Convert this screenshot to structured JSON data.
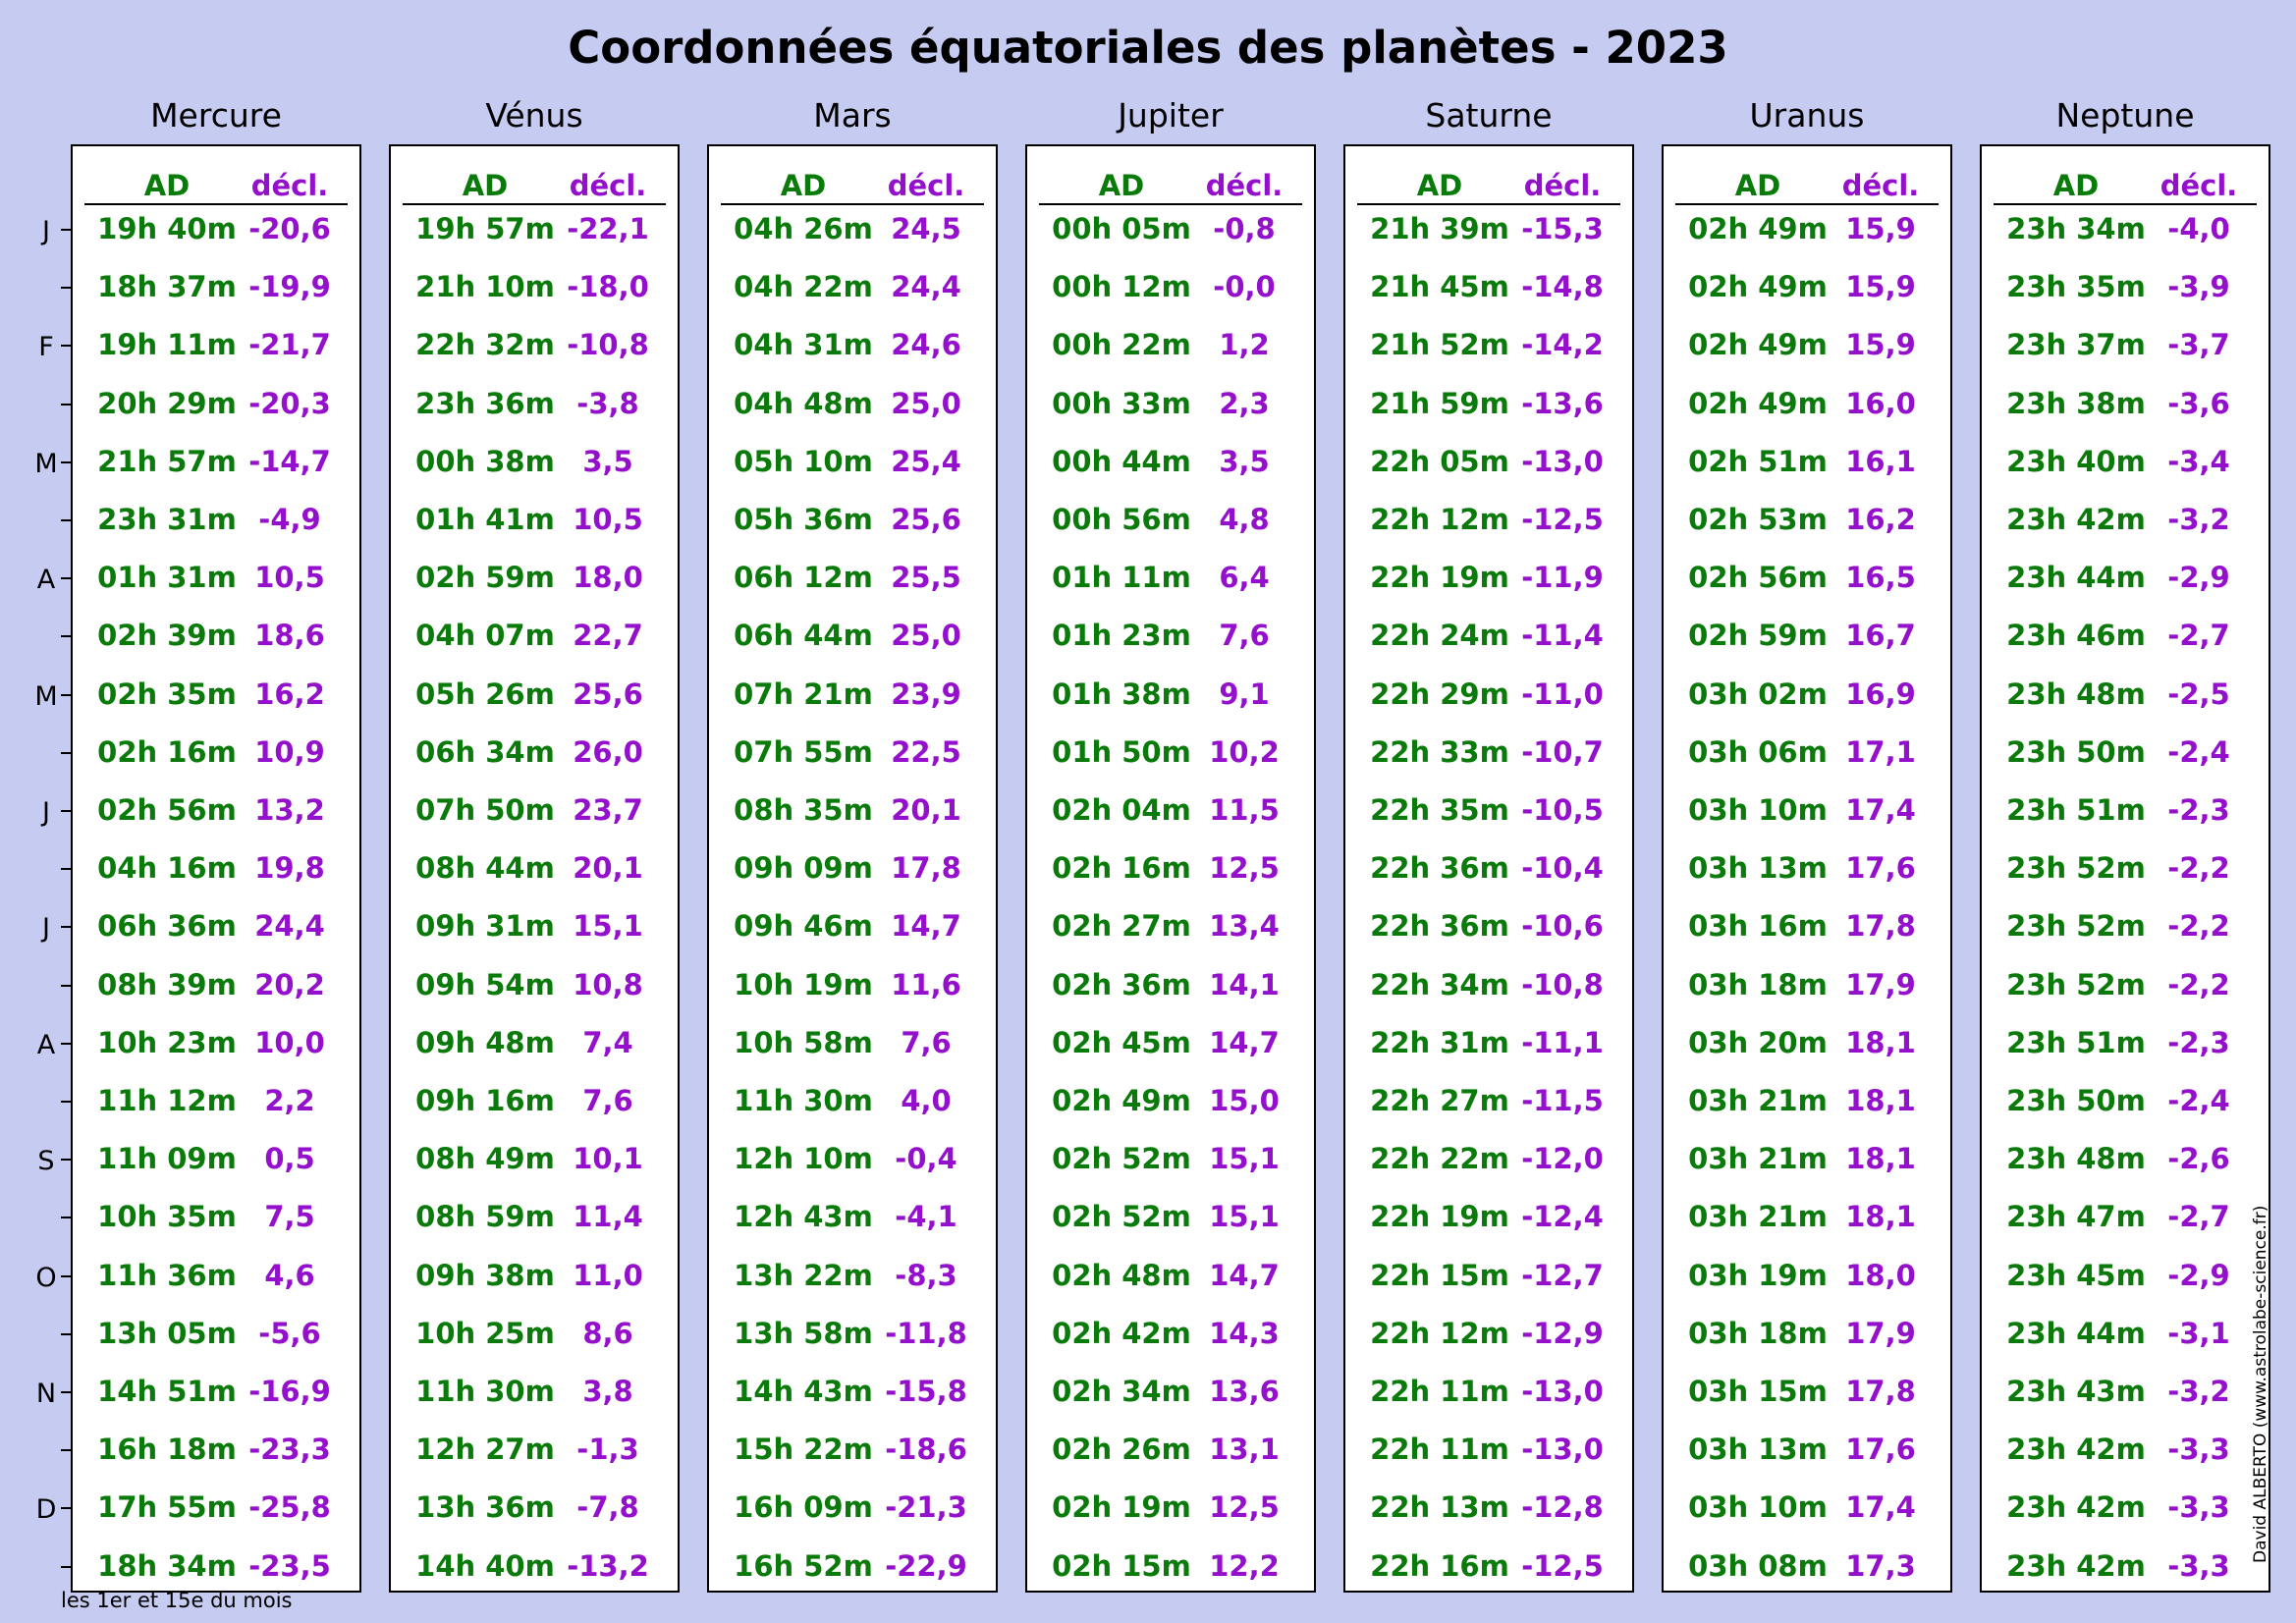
{
  "title": "Coordonnées équatoriales des planètes - 2023",
  "col_ad": "AD",
  "col_decl": "décl.",
  "footnote": "les 1er et 15e du mois",
  "credit": "David ALBERTO (www.astrolabe-science.fr)",
  "colors": {
    "background": "#c6cbf1",
    "ad": "#0a7a0a",
    "decl": "#9410cc"
  },
  "month_labels": [
    "J",
    "F",
    "M",
    "A",
    "M",
    "J",
    "J",
    "A",
    "S",
    "O",
    "N",
    "D"
  ],
  "planets": [
    {
      "name": "Mercure",
      "ad": [
        "19h 40m",
        "18h 37m",
        "19h 11m",
        "20h 29m",
        "21h 57m",
        "23h 31m",
        "01h 31m",
        "02h 39m",
        "02h 35m",
        "02h 16m",
        "02h 56m",
        "04h 16m",
        "06h 36m",
        "08h 39m",
        "10h 23m",
        "11h 12m",
        "11h 09m",
        "10h 35m",
        "11h 36m",
        "13h 05m",
        "14h 51m",
        "16h 18m",
        "17h 55m",
        "18h 34m"
      ],
      "decl": [
        "-20,6",
        "-19,9",
        "-21,7",
        "-20,3",
        "-14,7",
        "-4,9",
        "10,5",
        "18,6",
        "16,2",
        "10,9",
        "13,2",
        "19,8",
        "24,4",
        "20,2",
        "10,0",
        "2,2",
        "0,5",
        "7,5",
        "4,6",
        "-5,6",
        "-16,9",
        "-23,3",
        "-25,8",
        "-23,5"
      ]
    },
    {
      "name": "Vénus",
      "ad": [
        "19h 57m",
        "21h 10m",
        "22h 32m",
        "23h 36m",
        "00h 38m",
        "01h 41m",
        "02h 59m",
        "04h 07m",
        "05h 26m",
        "06h 34m",
        "07h 50m",
        "08h 44m",
        "09h 31m",
        "09h 54m",
        "09h 48m",
        "09h 16m",
        "08h 49m",
        "08h 59m",
        "09h 38m",
        "10h 25m",
        "11h 30m",
        "12h 27m",
        "13h 36m",
        "14h 40m"
      ],
      "decl": [
        "-22,1",
        "-18,0",
        "-10,8",
        "-3,8",
        "3,5",
        "10,5",
        "18,0",
        "22,7",
        "25,6",
        "26,0",
        "23,7",
        "20,1",
        "15,1",
        "10,8",
        "7,4",
        "7,6",
        "10,1",
        "11,4",
        "11,0",
        "8,6",
        "3,8",
        "-1,3",
        "-7,8",
        "-13,2"
      ]
    },
    {
      "name": "Mars",
      "ad": [
        "04h 26m",
        "04h 22m",
        "04h 31m",
        "04h 48m",
        "05h 10m",
        "05h 36m",
        "06h 12m",
        "06h 44m",
        "07h 21m",
        "07h 55m",
        "08h 35m",
        "09h 09m",
        "09h 46m",
        "10h 19m",
        "10h 58m",
        "11h 30m",
        "12h 10m",
        "12h 43m",
        "13h 22m",
        "13h 58m",
        "14h 43m",
        "15h 22m",
        "16h 09m",
        "16h 52m"
      ],
      "decl": [
        "24,5",
        "24,4",
        "24,6",
        "25,0",
        "25,4",
        "25,6",
        "25,5",
        "25,0",
        "23,9",
        "22,5",
        "20,1",
        "17,8",
        "14,7",
        "11,6",
        "7,6",
        "4,0",
        "-0,4",
        "-4,1",
        "-8,3",
        "-11,8",
        "-15,8",
        "-18,6",
        "-21,3",
        "-22,9"
      ]
    },
    {
      "name": "Jupiter",
      "ad": [
        "00h 05m",
        "00h 12m",
        "00h 22m",
        "00h 33m",
        "00h 44m",
        "00h 56m",
        "01h 11m",
        "01h 23m",
        "01h 38m",
        "01h 50m",
        "02h 04m",
        "02h 16m",
        "02h 27m",
        "02h 36m",
        "02h 45m",
        "02h 49m",
        "02h 52m",
        "02h 52m",
        "02h 48m",
        "02h 42m",
        "02h 34m",
        "02h 26m",
        "02h 19m",
        "02h 15m"
      ],
      "decl": [
        "-0,8",
        "-0,0",
        "1,2",
        "2,3",
        "3,5",
        "4,8",
        "6,4",
        "7,6",
        "9,1",
        "10,2",
        "11,5",
        "12,5",
        "13,4",
        "14,1",
        "14,7",
        "15,0",
        "15,1",
        "15,1",
        "14,7",
        "14,3",
        "13,6",
        "13,1",
        "12,5",
        "12,2"
      ]
    },
    {
      "name": "Saturne",
      "ad": [
        "21h 39m",
        "21h 45m",
        "21h 52m",
        "21h 59m",
        "22h 05m",
        "22h 12m",
        "22h 19m",
        "22h 24m",
        "22h 29m",
        "22h 33m",
        "22h 35m",
        "22h 36m",
        "22h 36m",
        "22h 34m",
        "22h 31m",
        "22h 27m",
        "22h 22m",
        "22h 19m",
        "22h 15m",
        "22h 12m",
        "22h 11m",
        "22h 11m",
        "22h 13m",
        "22h 16m"
      ],
      "decl": [
        "-15,3",
        "-14,8",
        "-14,2",
        "-13,6",
        "-13,0",
        "-12,5",
        "-11,9",
        "-11,4",
        "-11,0",
        "-10,7",
        "-10,5",
        "-10,4",
        "-10,6",
        "-10,8",
        "-11,1",
        "-11,5",
        "-12,0",
        "-12,4",
        "-12,7",
        "-12,9",
        "-13,0",
        "-13,0",
        "-12,8",
        "-12,5"
      ]
    },
    {
      "name": "Uranus",
      "ad": [
        "02h 49m",
        "02h 49m",
        "02h 49m",
        "02h 49m",
        "02h 51m",
        "02h 53m",
        "02h 56m",
        "02h 59m",
        "03h 02m",
        "03h 06m",
        "03h 10m",
        "03h 13m",
        "03h 16m",
        "03h 18m",
        "03h 20m",
        "03h 21m",
        "03h 21m",
        "03h 21m",
        "03h 19m",
        "03h 18m",
        "03h 15m",
        "03h 13m",
        "03h 10m",
        "03h 08m"
      ],
      "decl": [
        "15,9",
        "15,9",
        "15,9",
        "16,0",
        "16,1",
        "16,2",
        "16,5",
        "16,7",
        "16,9",
        "17,1",
        "17,4",
        "17,6",
        "17,8",
        "17,9",
        "18,1",
        "18,1",
        "18,1",
        "18,1",
        "18,0",
        "17,9",
        "17,8",
        "17,6",
        "17,4",
        "17,3"
      ]
    },
    {
      "name": "Neptune",
      "ad": [
        "23h 34m",
        "23h 35m",
        "23h 37m",
        "23h 38m",
        "23h 40m",
        "23h 42m",
        "23h 44m",
        "23h 46m",
        "23h 48m",
        "23h 50m",
        "23h 51m",
        "23h 52m",
        "23h 52m",
        "23h 52m",
        "23h 51m",
        "23h 50m",
        "23h 48m",
        "23h 47m",
        "23h 45m",
        "23h 44m",
        "23h 43m",
        "23h 42m",
        "23h 42m",
        "23h 42m"
      ],
      "decl": [
        "-4,0",
        "-3,9",
        "-3,7",
        "-3,6",
        "-3,4",
        "-3,2",
        "-2,9",
        "-2,7",
        "-2,5",
        "-2,4",
        "-2,3",
        "-2,2",
        "-2,2",
        "-2,2",
        "-2,3",
        "-2,4",
        "-2,6",
        "-2,7",
        "-2,9",
        "-3,1",
        "-3,2",
        "-3,3",
        "-3,3",
        "-3,3"
      ]
    }
  ]
}
